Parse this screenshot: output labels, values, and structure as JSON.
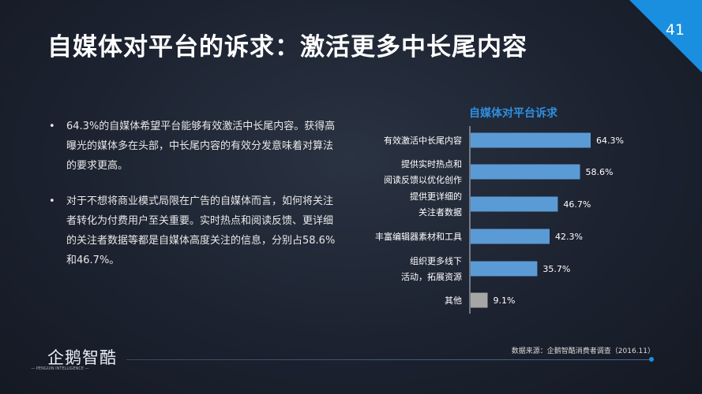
{
  "header": {
    "title": "自媒体对平台的诉求：激活更多中长尾内容",
    "page_number": "41"
  },
  "bullets": [
    {
      "marker": "•",
      "text": "64.3%的自媒体希望平台能够有效激活中长尾内容。获得高曝光的媒体多在头部，中长尾内容的有效分发意味着对算法的要求更高。"
    },
    {
      "marker": "•",
      "text": "对于不想将商业模式局限在广告的自媒体而言，如何将关注者转化为付费用户至关重要。实时热点和阅读反馈、更详细的关注者数据等都是自媒体高度关注的信息，分别占58.6%和46.7%。"
    }
  ],
  "chart_data": {
    "type": "bar",
    "orientation": "horizontal",
    "title": "自媒体对平台诉求",
    "categories": [
      [
        "有效激活中长尾内容"
      ],
      [
        "提供实时热点和",
        "阅读反馈以优化创作"
      ],
      [
        "提供更详细的",
        "关注者数据"
      ],
      [
        "丰富编辑器素材和工具"
      ],
      [
        "组织更多线下",
        "活动，拓展资源"
      ],
      [
        "其他"
      ]
    ],
    "values": [
      64.3,
      58.6,
      46.7,
      42.3,
      35.7,
      9.1
    ],
    "value_labels": [
      "64.3%",
      "58.6%",
      "46.7%",
      "42.3%",
      "35.7%",
      "9.1%"
    ],
    "colors": [
      "#5b9bd5",
      "#5b9bd5",
      "#5b9bd5",
      "#5b9bd5",
      "#5b9bd5",
      "#a6a6a6"
    ],
    "grid": false
  },
  "footer": {
    "source": "数据来源：企鹅智酷消费者调查（2016.11）",
    "logo": "企鹅智酷",
    "logo_sub": "— PENGUIN INTELLIGENCE —"
  },
  "colors": {
    "accent": "#1a8fe0",
    "bar": "#5b9bd5",
    "other_bar": "#a6a6a6"
  }
}
